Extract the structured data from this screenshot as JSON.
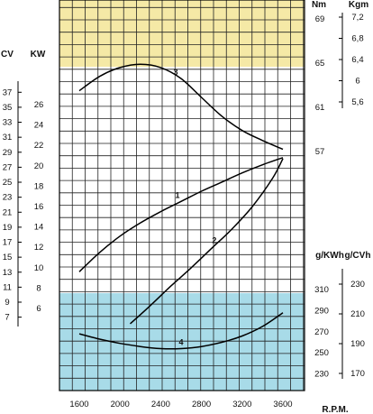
{
  "chart_data": {
    "type": "line",
    "xlabel": "R.P.M.",
    "x_ticks": [
      "1600",
      "2000",
      "2400",
      "2800",
      "3200",
      "3600"
    ],
    "xlim": [
      1400,
      3800
    ],
    "colors": {
      "torque_band": "#f5e9a6",
      "consumption_band": "#a8dbe8",
      "grid": "#222222",
      "line": "#000000"
    },
    "axes": {
      "torque_nm": {
        "unit": "Nm",
        "ticks": [
          "69",
          "65",
          "61",
          "57"
        ]
      },
      "torque_kgm": {
        "unit": "Kgm",
        "ticks": [
          "7,2",
          "6,8",
          "6,4",
          "6",
          "5,6"
        ]
      },
      "power_cv": {
        "unit": "CV",
        "ticks": [
          "37",
          "35",
          "33",
          "31",
          "29",
          "27",
          "25",
          "23",
          "21",
          "19",
          "17",
          "15",
          "13",
          "11",
          "9",
          "7"
        ]
      },
      "power_kw": {
        "unit": "KW",
        "ticks": [
          "26",
          "24",
          "22",
          "20",
          "18",
          "16",
          "14",
          "12",
          "10",
          "8",
          "6"
        ],
        "ylim": [
          2,
          28
        ]
      },
      "consumption_gkwh": {
        "unit": "g/KWh",
        "ticks": [
          "310",
          "290",
          "270",
          "250",
          "230"
        ]
      },
      "consumption_gcvh": {
        "unit": "g/CVh",
        "ticks": [
          "230",
          "210",
          "190",
          "170"
        ]
      }
    },
    "series": [
      {
        "label": "3",
        "axis": "torque_nm",
        "x": [
          1600,
          1800,
          2000,
          2200,
          2400,
          2600,
          2800,
          3000,
          3200,
          3400,
          3600
        ],
        "y": [
          62.5,
          63.8,
          64.6,
          64.9,
          64.6,
          63.6,
          61.9,
          60.2,
          58.9,
          58.0,
          57.2
        ]
      },
      {
        "label": "1",
        "axis": "power_kw",
        "x": [
          1600,
          1800,
          2000,
          2200,
          2400,
          2600,
          2800,
          3000,
          3200,
          3400,
          3600
        ],
        "y": [
          9.6,
          11.5,
          13.1,
          14.4,
          15.5,
          16.5,
          17.5,
          18.4,
          19.3,
          20.1,
          20.8
        ]
      },
      {
        "label": "2",
        "axis": "power_kw",
        "x": [
          2100,
          2300,
          2500,
          2700,
          2900,
          3100,
          3300,
          3500,
          3600
        ],
        "y": [
          4.5,
          6.3,
          8.2,
          10.0,
          11.9,
          13.8,
          16.0,
          18.8,
          20.7
        ]
      },
      {
        "label": "4",
        "axis": "consumption_gkwh",
        "x": [
          1600,
          1800,
          2000,
          2200,
          2400,
          2600,
          2800,
          3000,
          3200,
          3400,
          3600
        ],
        "y": [
          268,
          263,
          259,
          256,
          254,
          254,
          256,
          260,
          266,
          275,
          288
        ]
      }
    ]
  }
}
